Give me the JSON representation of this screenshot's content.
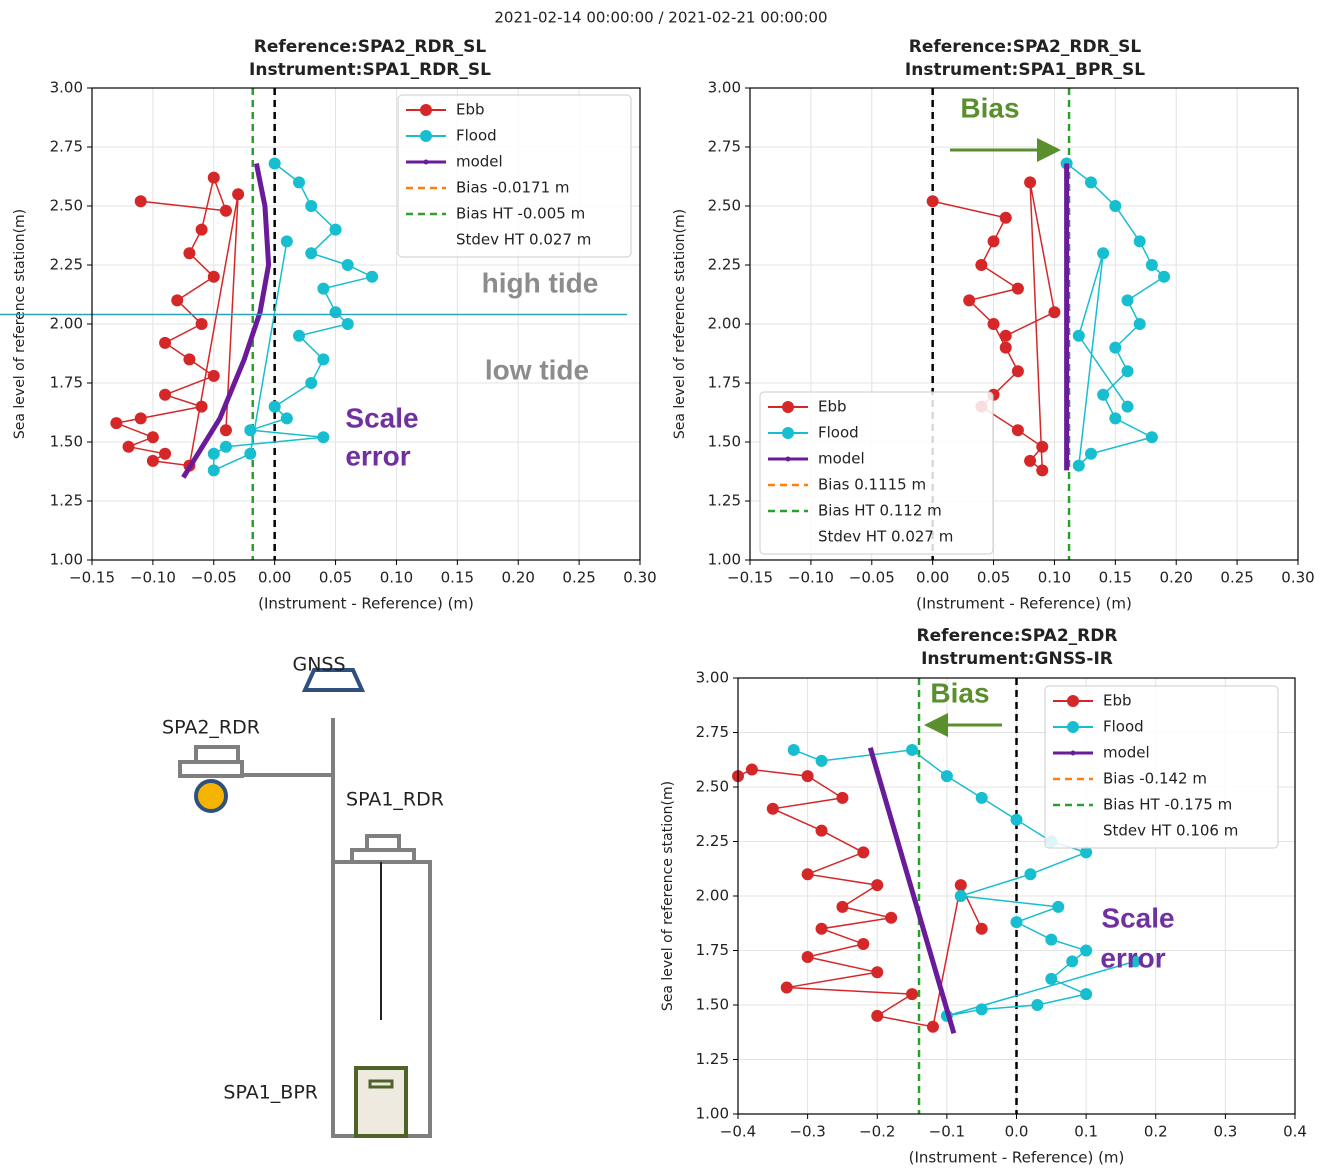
{
  "suptitle": "2021-02-14 00:00:00 / 2021-02-21 00:00:00",
  "chart_data": [
    {
      "type": "scatter",
      "title": [
        "Reference:SPA2_RDR_SL",
        "Instrument:SPA1_RDR_SL"
      ],
      "xlabel": "(Instrument - Reference) (m)",
      "ylabel": "Sea level of reference station(m)",
      "xlim": [
        -0.15,
        0.3
      ],
      "xticks": [
        {
          "value": -0.15,
          "label": "−0.15"
        },
        {
          "value": -0.1,
          "label": "−0.10"
        },
        {
          "value": -0.05,
          "label": "−0.05"
        },
        {
          "value": 0,
          "label": "0.00"
        },
        {
          "value": 0.05,
          "label": "0.05"
        },
        {
          "value": 0.1,
          "label": "0.10"
        },
        {
          "value": 0.15,
          "label": "0.15"
        },
        {
          "value": 0.2,
          "label": "0.20"
        },
        {
          "value": 0.25,
          "label": "0.25"
        },
        {
          "value": 0.3,
          "label": "0.30"
        }
      ],
      "ylim": [
        1.0,
        3.0
      ],
      "yticks": [
        {
          "value": 1.0,
          "label": "1.00"
        },
        {
          "value": 1.25,
          "label": "1.25"
        },
        {
          "value": 1.5,
          "label": "1.50"
        },
        {
          "value": 1.75,
          "label": "1.75"
        },
        {
          "value": 2.0,
          "label": "2.00"
        },
        {
          "value": 2.25,
          "label": "2.25"
        },
        {
          "value": 2.5,
          "label": "2.50"
        },
        {
          "value": 2.75,
          "label": "2.75"
        },
        {
          "value": 3.0,
          "label": "3.00"
        }
      ],
      "grid": true,
      "legend": "upper right",
      "series": [
        {
          "name": "Ebb",
          "color": "#d62728",
          "x": [
            -0.11,
            -0.04,
            -0.05,
            -0.06,
            -0.07,
            -0.05,
            -0.08,
            -0.06,
            -0.09,
            -0.07,
            -0.05,
            -0.09,
            -0.06,
            -0.11,
            -0.13,
            -0.1,
            -0.12,
            -0.09,
            -0.1,
            -0.07,
            -0.03,
            -0.04
          ],
          "values": [
            2.52,
            2.48,
            2.62,
            2.4,
            2.3,
            2.2,
            2.1,
            2.0,
            1.92,
            1.85,
            1.78,
            1.7,
            1.65,
            1.6,
            1.58,
            1.52,
            1.48,
            1.45,
            1.42,
            1.4,
            2.55,
            1.55
          ]
        },
        {
          "name": "Flood",
          "color": "#17becf",
          "x": [
            0.0,
            0.02,
            0.03,
            0.05,
            0.03,
            0.06,
            0.08,
            0.04,
            0.05,
            0.06,
            0.02,
            0.04,
            0.03,
            0.0,
            0.01,
            -0.02,
            0.04,
            -0.04,
            -0.05,
            -0.05,
            -0.02,
            0.01
          ],
          "values": [
            2.68,
            2.6,
            2.5,
            2.4,
            2.3,
            2.25,
            2.2,
            2.15,
            2.05,
            2.0,
            1.95,
            1.85,
            1.75,
            1.65,
            1.6,
            1.55,
            1.52,
            1.48,
            1.45,
            1.38,
            1.45,
            2.35
          ]
        },
        {
          "name": "model",
          "color": "#6a1b9a",
          "x": [
            -0.075,
            -0.045,
            -0.025,
            -0.012,
            -0.005,
            -0.008,
            -0.015
          ],
          "values": [
            1.35,
            1.6,
            1.85,
            2.05,
            2.25,
            2.5,
            2.68
          ]
        }
      ],
      "legend_extra": [
        {
          "label": "Bias -0.0171 m",
          "color": "#ff7f0e"
        },
        {
          "label": "Bias HT -0.005 m",
          "color": "#2ca02c"
        },
        {
          "label": "Stdev HT 0.027 m"
        }
      ],
      "vlines": [
        {
          "x": -0.018,
          "color": "#2ca02c"
        },
        {
          "x": 0,
          "color": "#000000"
        }
      ],
      "annotations": [
        {
          "text": "high tide",
          "color": "#8c8c8c"
        },
        {
          "text": "low tide",
          "color": "#8c8c8c"
        },
        {
          "text": "Scale",
          "color": "#7030a0"
        },
        {
          "text": "error",
          "color": "#7030a0"
        }
      ]
    },
    {
      "type": "scatter",
      "title": [
        "Reference:SPA2_RDR_SL",
        "Instrument:SPA1_BPR_SL"
      ],
      "xlabel": "(Instrument - Reference) (m)",
      "ylabel": "Sea level of reference station(m)",
      "xlim": [
        -0.15,
        0.3
      ],
      "xticks": [
        {
          "value": -0.15,
          "label": "−0.15"
        },
        {
          "value": -0.1,
          "label": "−0.10"
        },
        {
          "value": -0.05,
          "label": "−0.05"
        },
        {
          "value": 0,
          "label": "0.00"
        },
        {
          "value": 0.05,
          "label": "0.05"
        },
        {
          "value": 0.1,
          "label": "0.10"
        },
        {
          "value": 0.15,
          "label": "0.15"
        },
        {
          "value": 0.2,
          "label": "0.20"
        },
        {
          "value": 0.25,
          "label": "0.25"
        },
        {
          "value": 0.3,
          "label": "0.30"
        }
      ],
      "ylim": [
        1.0,
        3.0
      ],
      "yticks": [
        {
          "value": 1.0,
          "label": "1.00"
        },
        {
          "value": 1.25,
          "label": "1.25"
        },
        {
          "value": 1.5,
          "label": "1.50"
        },
        {
          "value": 1.75,
          "label": "1.75"
        },
        {
          "value": 2.0,
          "label": "2.00"
        },
        {
          "value": 2.25,
          "label": "2.25"
        },
        {
          "value": 2.5,
          "label": "2.50"
        },
        {
          "value": 2.75,
          "label": "2.75"
        },
        {
          "value": 3.0,
          "label": "3.00"
        }
      ],
      "grid": true,
      "legend": "lower left",
      "series": [
        {
          "name": "Ebb",
          "color": "#d62728",
          "x": [
            0.0,
            0.06,
            0.05,
            0.04,
            0.07,
            0.03,
            0.05,
            0.06,
            0.07,
            0.05,
            0.04,
            0.07,
            0.09,
            0.08,
            0.09,
            0.08,
            0.1,
            0.06
          ],
          "values": [
            2.52,
            2.45,
            2.35,
            2.25,
            2.15,
            2.1,
            2.0,
            1.9,
            1.8,
            1.7,
            1.65,
            1.55,
            1.48,
            1.42,
            1.38,
            2.6,
            2.05,
            1.95
          ]
        },
        {
          "name": "Flood",
          "color": "#17becf",
          "x": [
            0.11,
            0.13,
            0.15,
            0.17,
            0.18,
            0.19,
            0.16,
            0.17,
            0.15,
            0.16,
            0.14,
            0.15,
            0.18,
            0.13,
            0.12,
            0.14,
            0.12,
            0.16
          ],
          "values": [
            2.68,
            2.6,
            2.5,
            2.35,
            2.25,
            2.2,
            2.1,
            2.0,
            1.9,
            1.8,
            1.7,
            1.6,
            1.52,
            1.45,
            1.4,
            2.3,
            1.95,
            1.65
          ]
        },
        {
          "name": "model",
          "color": "#6a1b9a",
          "x": [
            0.11,
            0.11
          ],
          "values": [
            1.38,
            2.68
          ]
        }
      ],
      "legend_extra": [
        {
          "label": "Bias 0.1115 m",
          "color": "#ff7f0e"
        },
        {
          "label": "Bias HT 0.112 m",
          "color": "#2ca02c"
        },
        {
          "label": "Stdev HT 0.027 m"
        }
      ],
      "vlines": [
        {
          "x": 0,
          "color": "#000000"
        },
        {
          "x": 0.112,
          "color": "#2ca02c"
        }
      ],
      "annotations": [
        {
          "text": "Bias",
          "color": "#5a8f2e"
        }
      ]
    },
    {
      "type": "scatter",
      "title": [
        "Reference:SPA2_RDR",
        "Instrument:GNSS-IR"
      ],
      "xlabel": "(Instrument - Reference) (m)",
      "ylabel": "Sea level of reference station(m)",
      "xlim": [
        -0.4,
        0.4
      ],
      "xticks": [
        {
          "value": -0.4,
          "label": "−0.4"
        },
        {
          "value": -0.3,
          "label": "−0.3"
        },
        {
          "value": -0.2,
          "label": "−0.2"
        },
        {
          "value": -0.1,
          "label": "−0.1"
        },
        {
          "value": 0,
          "label": "0.0"
        },
        {
          "value": 0.1,
          "label": "0.1"
        },
        {
          "value": 0.2,
          "label": "0.2"
        },
        {
          "value": 0.3,
          "label": "0.3"
        },
        {
          "value": 0.4,
          "label": "0.4"
        }
      ],
      "ylim": [
        1.0,
        3.0
      ],
      "yticks": [
        {
          "value": 1.0,
          "label": "1.00"
        },
        {
          "value": 1.25,
          "label": "1.25"
        },
        {
          "value": 1.5,
          "label": "1.50"
        },
        {
          "value": 1.75,
          "label": "1.75"
        },
        {
          "value": 2.0,
          "label": "2.00"
        },
        {
          "value": 2.25,
          "label": "2.25"
        },
        {
          "value": 2.5,
          "label": "2.50"
        },
        {
          "value": 2.75,
          "label": "2.75"
        },
        {
          "value": 3.0,
          "label": "3.00"
        }
      ],
      "grid": true,
      "legend": "upper right",
      "series": [
        {
          "name": "Ebb",
          "color": "#d62728",
          "x": [
            -0.4,
            -0.38,
            -0.3,
            -0.25,
            -0.35,
            -0.28,
            -0.22,
            -0.3,
            -0.2,
            -0.25,
            -0.18,
            -0.28,
            -0.22,
            -0.3,
            -0.2,
            -0.33,
            -0.15,
            -0.2,
            -0.12,
            -0.08,
            -0.05
          ],
          "values": [
            2.55,
            2.58,
            2.55,
            2.45,
            2.4,
            2.3,
            2.2,
            2.1,
            2.05,
            1.95,
            1.9,
            1.85,
            1.78,
            1.72,
            1.65,
            1.58,
            1.55,
            1.45,
            1.4,
            2.05,
            1.85
          ]
        },
        {
          "name": "Flood",
          "color": "#17becf",
          "x": [
            -0.32,
            -0.28,
            -0.15,
            -0.1,
            -0.05,
            0.0,
            0.05,
            0.1,
            0.02,
            -0.08,
            0.06,
            0.0,
            0.05,
            0.1,
            0.08,
            0.05,
            0.1,
            0.03,
            -0.05,
            -0.1,
            0.17
          ],
          "values": [
            2.67,
            2.62,
            2.67,
            2.55,
            2.45,
            2.35,
            2.25,
            2.2,
            2.1,
            2.0,
            1.95,
            1.88,
            1.8,
            1.75,
            1.7,
            1.62,
            1.55,
            1.5,
            1.48,
            1.45,
            1.7
          ]
        },
        {
          "name": "model",
          "color": "#6a1b9a",
          "x": [
            -0.21,
            -0.09
          ],
          "values": [
            2.68,
            1.37
          ]
        }
      ],
      "legend_extra": [
        {
          "label": "Bias -0.142 m",
          "color": "#ff7f0e"
        },
        {
          "label": "Bias HT -0.175 m",
          "color": "#2ca02c"
        },
        {
          "label": "Stdev HT 0.106 m"
        }
      ],
      "vlines": [
        {
          "x": -0.14,
          "color": "#2ca02c"
        },
        {
          "x": 0,
          "color": "#000000"
        }
      ],
      "annotations": [
        {
          "text": "Bias",
          "color": "#5a8f2e"
        },
        {
          "text": "Scale",
          "color": "#7030a0"
        },
        {
          "text": "error",
          "color": "#7030a0"
        }
      ]
    }
  ],
  "diagram": {
    "labels": [
      "GNSS",
      "SPA2_RDR",
      "SPA1_RDR",
      "SPA1_BPR"
    ]
  }
}
